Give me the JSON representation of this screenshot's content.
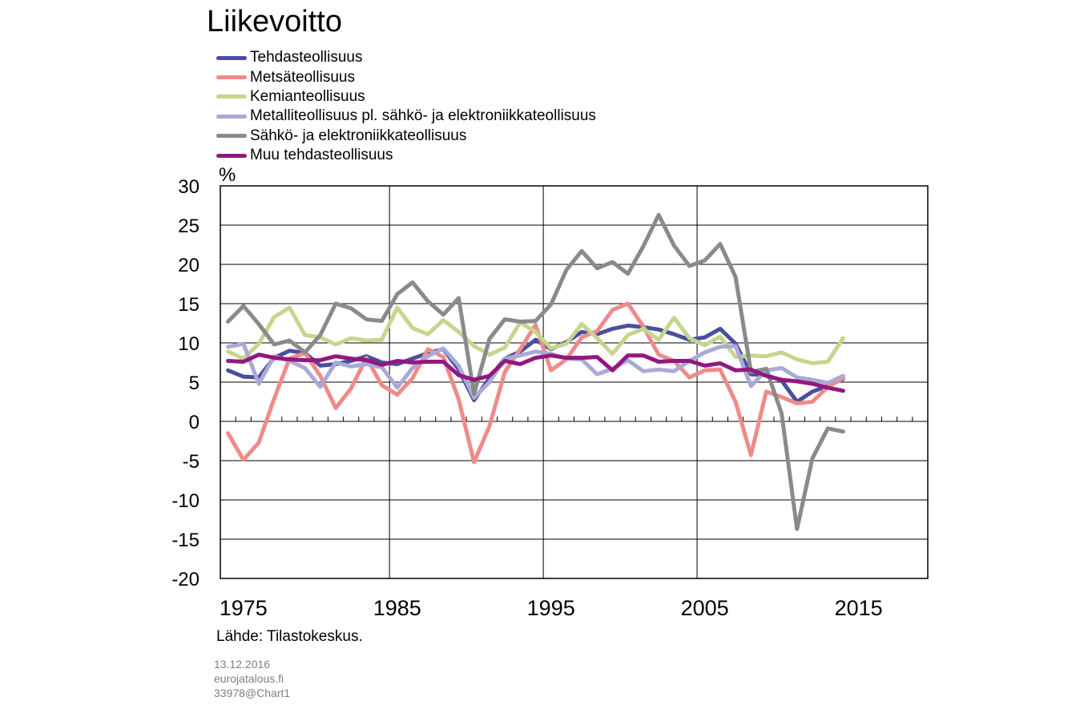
{
  "chart_data": {
    "type": "line",
    "title": "Liikevoitto",
    "ylabel": "%",
    "ylim": [
      -20,
      30
    ],
    "yticks": [
      "30",
      "25",
      "20",
      "15",
      "10",
      "5",
      "0",
      "-5",
      "-10",
      "-15",
      "-20"
    ],
    "xlim": [
      1973.5,
      2019.5
    ],
    "xtick_labels": [
      "1975",
      "1985",
      "1995",
      "2005",
      "2015"
    ],
    "grid": true,
    "legend_position": "top-left",
    "x": [
      1974,
      1975,
      1976,
      1977,
      1978,
      1979,
      1980,
      1981,
      1982,
      1983,
      1984,
      1985,
      1986,
      1987,
      1988,
      1989,
      1990,
      1991,
      1992,
      1993,
      1994,
      1995,
      1996,
      1997,
      1998,
      1999,
      2000,
      2001,
      2002,
      2003,
      2004,
      2005,
      2006,
      2007,
      2008,
      2009,
      2010,
      2011,
      2012,
      2013,
      2014
    ],
    "series": [
      {
        "name": "Tehdasteollisuus",
        "color": "#4a4e9e",
        "values": [
          6.5,
          5.7,
          5.6,
          8.1,
          9.0,
          8.7,
          7.1,
          7.3,
          7.7,
          8.3,
          7.5,
          7.3,
          8.0,
          8.7,
          9.2,
          6.6,
          2.7,
          5.5,
          8.0,
          8.9,
          10.4,
          9.2,
          10.1,
          11.4,
          11.1,
          11.8,
          12.2,
          12.0,
          11.7,
          11.1,
          10.4,
          10.7,
          11.8,
          9.9,
          6.0,
          5.9,
          5.2,
          2.5,
          3.8,
          4.5,
          5.4
        ]
      },
      {
        "name": "Metsäteollisuus",
        "color": "#f08a8a",
        "values": [
          -1.5,
          -4.9,
          -2.7,
          2.9,
          8.0,
          8.7,
          5.8,
          1.7,
          4.2,
          8.1,
          4.6,
          3.4,
          5.5,
          9.2,
          8.2,
          2.8,
          -5.2,
          -0.6,
          6.3,
          9.2,
          12.3,
          6.5,
          7.9,
          10.7,
          11.5,
          14.2,
          15.0,
          12.1,
          8.5,
          7.7,
          5.6,
          6.5,
          6.6,
          2.5,
          -4.3,
          3.8,
          3.1,
          2.3,
          2.5,
          4.4,
          5.5
        ]
      },
      {
        "name": "Kemianteollisuus",
        "color": "#c4d68c",
        "values": [
          8.9,
          8.0,
          9.9,
          13.3,
          14.5,
          11.0,
          10.7,
          9.8,
          10.6,
          10.3,
          10.4,
          14.5,
          11.9,
          11.1,
          12.9,
          11.4,
          9.6,
          8.5,
          9.4,
          12.6,
          11.4,
          9.3,
          9.9,
          12.4,
          10.6,
          8.6,
          11.0,
          11.8,
          10.4,
          13.2,
          10.6,
          9.7,
          10.8,
          8.2,
          8.4,
          8.3,
          8.8,
          7.9,
          7.4,
          7.6,
          10.6
        ]
      },
      {
        "name": "Metalliteollisuus pl. sähkö- ja elektroniikkateollisuus",
        "color": "#a9aad6",
        "values": [
          9.5,
          9.9,
          4.8,
          8.3,
          7.7,
          6.8,
          4.4,
          7.5,
          7.0,
          7.3,
          6.9,
          4.3,
          6.8,
          8.3,
          9.3,
          7.1,
          3.0,
          5.0,
          8.0,
          8.4,
          8.9,
          8.6,
          8.0,
          7.9,
          6.0,
          6.7,
          7.8,
          6.4,
          6.6,
          6.4,
          7.7,
          8.8,
          9.5,
          9.6,
          4.5,
          6.5,
          6.8,
          5.6,
          5.3,
          4.9,
          5.8
        ]
      },
      {
        "name": "Sähkö- ja elektroniikkateollisuus",
        "color": "#8a8a8a",
        "values": [
          12.7,
          14.7,
          12.4,
          9.8,
          10.3,
          8.8,
          11.0,
          15.0,
          14.4,
          13.0,
          12.8,
          16.2,
          17.7,
          15.3,
          13.6,
          15.7,
          3.5,
          10.5,
          13.0,
          12.7,
          12.8,
          14.9,
          19.3,
          21.7,
          19.5,
          20.3,
          18.8,
          22.3,
          26.3,
          22.4,
          19.8,
          20.5,
          22.6,
          18.4,
          6.3,
          6.7,
          1.0,
          -13.7,
          -4.7,
          -0.9,
          -1.3
        ]
      },
      {
        "name": "Muu tehdasteollisuus",
        "color": "#94177f",
        "values": [
          7.7,
          7.6,
          8.5,
          8.1,
          7.9,
          7.8,
          7.8,
          8.3,
          8.0,
          7.8,
          7.2,
          7.7,
          7.5,
          7.6,
          7.6,
          5.9,
          5.3,
          5.8,
          7.7,
          7.3,
          8.1,
          8.4,
          8.1,
          8.1,
          8.2,
          6.5,
          8.4,
          8.4,
          7.6,
          7.7,
          7.7,
          7.1,
          7.4,
          6.5,
          6.6,
          5.8,
          5.3,
          5.1,
          4.8,
          4.3,
          3.9
        ]
      }
    ]
  },
  "source": "Lähde: Tilastokeskus.",
  "meta": {
    "date": "13.12.2016",
    "site": "eurojatalous.fi",
    "chart_id": "33978@Chart1"
  }
}
